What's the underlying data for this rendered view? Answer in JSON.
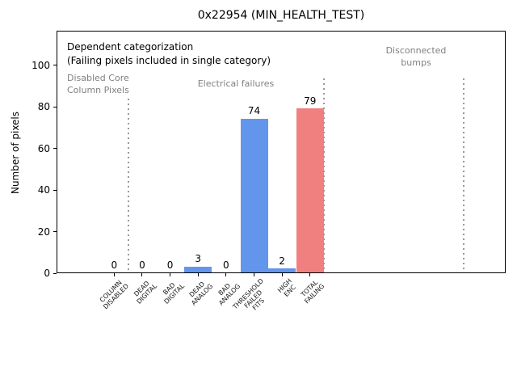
{
  "chart_data": {
    "type": "bar",
    "title": "0x22954 (MIN_HEALTH_TEST)",
    "ylabel": "Number of pixels",
    "xlabel": "",
    "categories": [
      "COLUMN\nDISABLED",
      "DEAD\nDIGITAL",
      "BAD\nDIGITAL",
      "DEAD\nANALOG",
      "BAD\nANALOG",
      "THRESHOLD\nFAILED\nFITS",
      "HIGH\nENC",
      "TOTAL\nFAILING"
    ],
    "values": [
      0,
      0,
      0,
      3,
      0,
      74,
      2,
      79
    ],
    "bar_value_labels": [
      "0",
      "0",
      "0",
      "3",
      "0",
      "74",
      "2",
      "79"
    ],
    "bar_colors": [
      "#6495ED",
      "#6495ED",
      "#6495ED",
      "#6495ED",
      "#6495ED",
      "#6495ED",
      "#6495ED",
      "#F08080"
    ],
    "yticks": [
      0,
      20,
      40,
      60,
      80,
      100
    ],
    "ylim": [
      0,
      116
    ],
    "xlim": [
      -2,
      14
    ],
    "grid": false,
    "legend": null,
    "annotations": {
      "note_line1": "Dependent categorization",
      "note_line2": "(Failing pixels included in single category)",
      "section_left": "Disabled Core\nColumn Pixels",
      "section_middle": "Electrical failures",
      "section_right": "Disconnected\nbumps"
    },
    "separators": [
      {
        "x": 0.5,
        "ymax": 84
      },
      {
        "x": 7.5,
        "ymax": 93.5
      },
      {
        "x": 12.5,
        "ymax": 93.5
      }
    ],
    "colors": {
      "bar_blue": "#6495ED",
      "bar_red": "#F08080",
      "section_text": "#808080",
      "separator": "#999999",
      "axis": "#000000"
    }
  }
}
